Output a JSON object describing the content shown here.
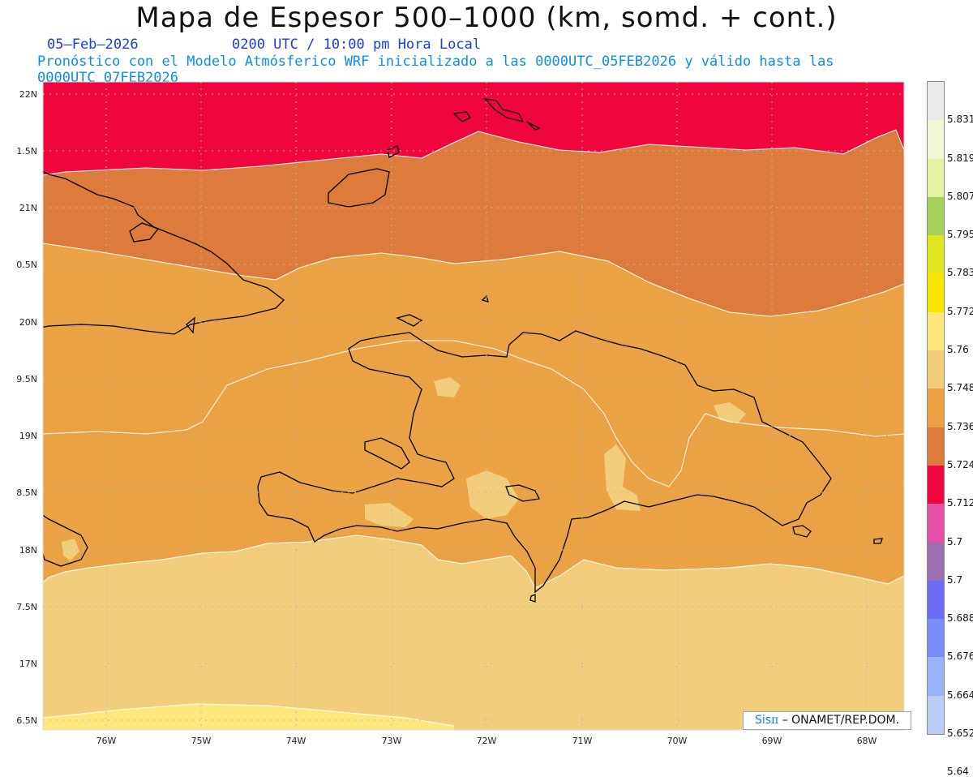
{
  "header": {
    "title": "Mapa de Espesor 500–1000 (km, somd. + cont.)",
    "date": "05–Feb–2026",
    "time": "0200 UTC / 10:00 pm Hora Local",
    "info": "Pronóstico con el Modelo Atmósferico WRF inicializado a las 0000UTC_05FEB2026 y válido hasta las  0000UTC_07FEB2026"
  },
  "credit": {
    "brand": "Sis",
    "pi": "π",
    "text": " – ONAMET/REP.DOM."
  },
  "axes": {
    "lat": [
      "22N",
      "1.5N",
      "21N",
      "0.5N",
      "20N",
      "9.5N",
      "19N",
      "8.5N",
      "18N",
      "7.5N",
      "17N",
      "6.5N"
    ],
    "lon": [
      "76W",
      "75W",
      "74W",
      "73W",
      "72W",
      "71W",
      "70W",
      "69W",
      "68W"
    ]
  },
  "colorbar": {
    "labels": [
      "5.831",
      "5.819",
      "5.807",
      "5.795",
      "5.783",
      "5.772",
      "5.76",
      "5.748",
      "5.736",
      "5.724",
      "5.712",
      "5.7",
      "5.7",
      "5.688",
      "5.676",
      "5.664",
      "5.652",
      "5.64"
    ],
    "colors": [
      "#e9e9e9",
      "#f2f6d7",
      "#e1f3a0",
      "#a6d15b",
      "#e0e61f",
      "#f8e600",
      "#fde67c",
      "#f2ce7c",
      "#eaa244",
      "#dc7b3b",
      "#f0063f",
      "#e64fa7",
      "#9b6fb0",
      "#6d6cf5",
      "#7a8df9",
      "#9ab4f8",
      "#bccdf7"
    ]
  },
  "colors": {
    "band_red": "#f0063f",
    "band_dark": "#dc7b3b",
    "band_mid": "#eaa244",
    "band_light": "#f2ce7c",
    "band_yellow": "#fde67c",
    "coast": "#000000",
    "contour": "#ffffff"
  }
}
